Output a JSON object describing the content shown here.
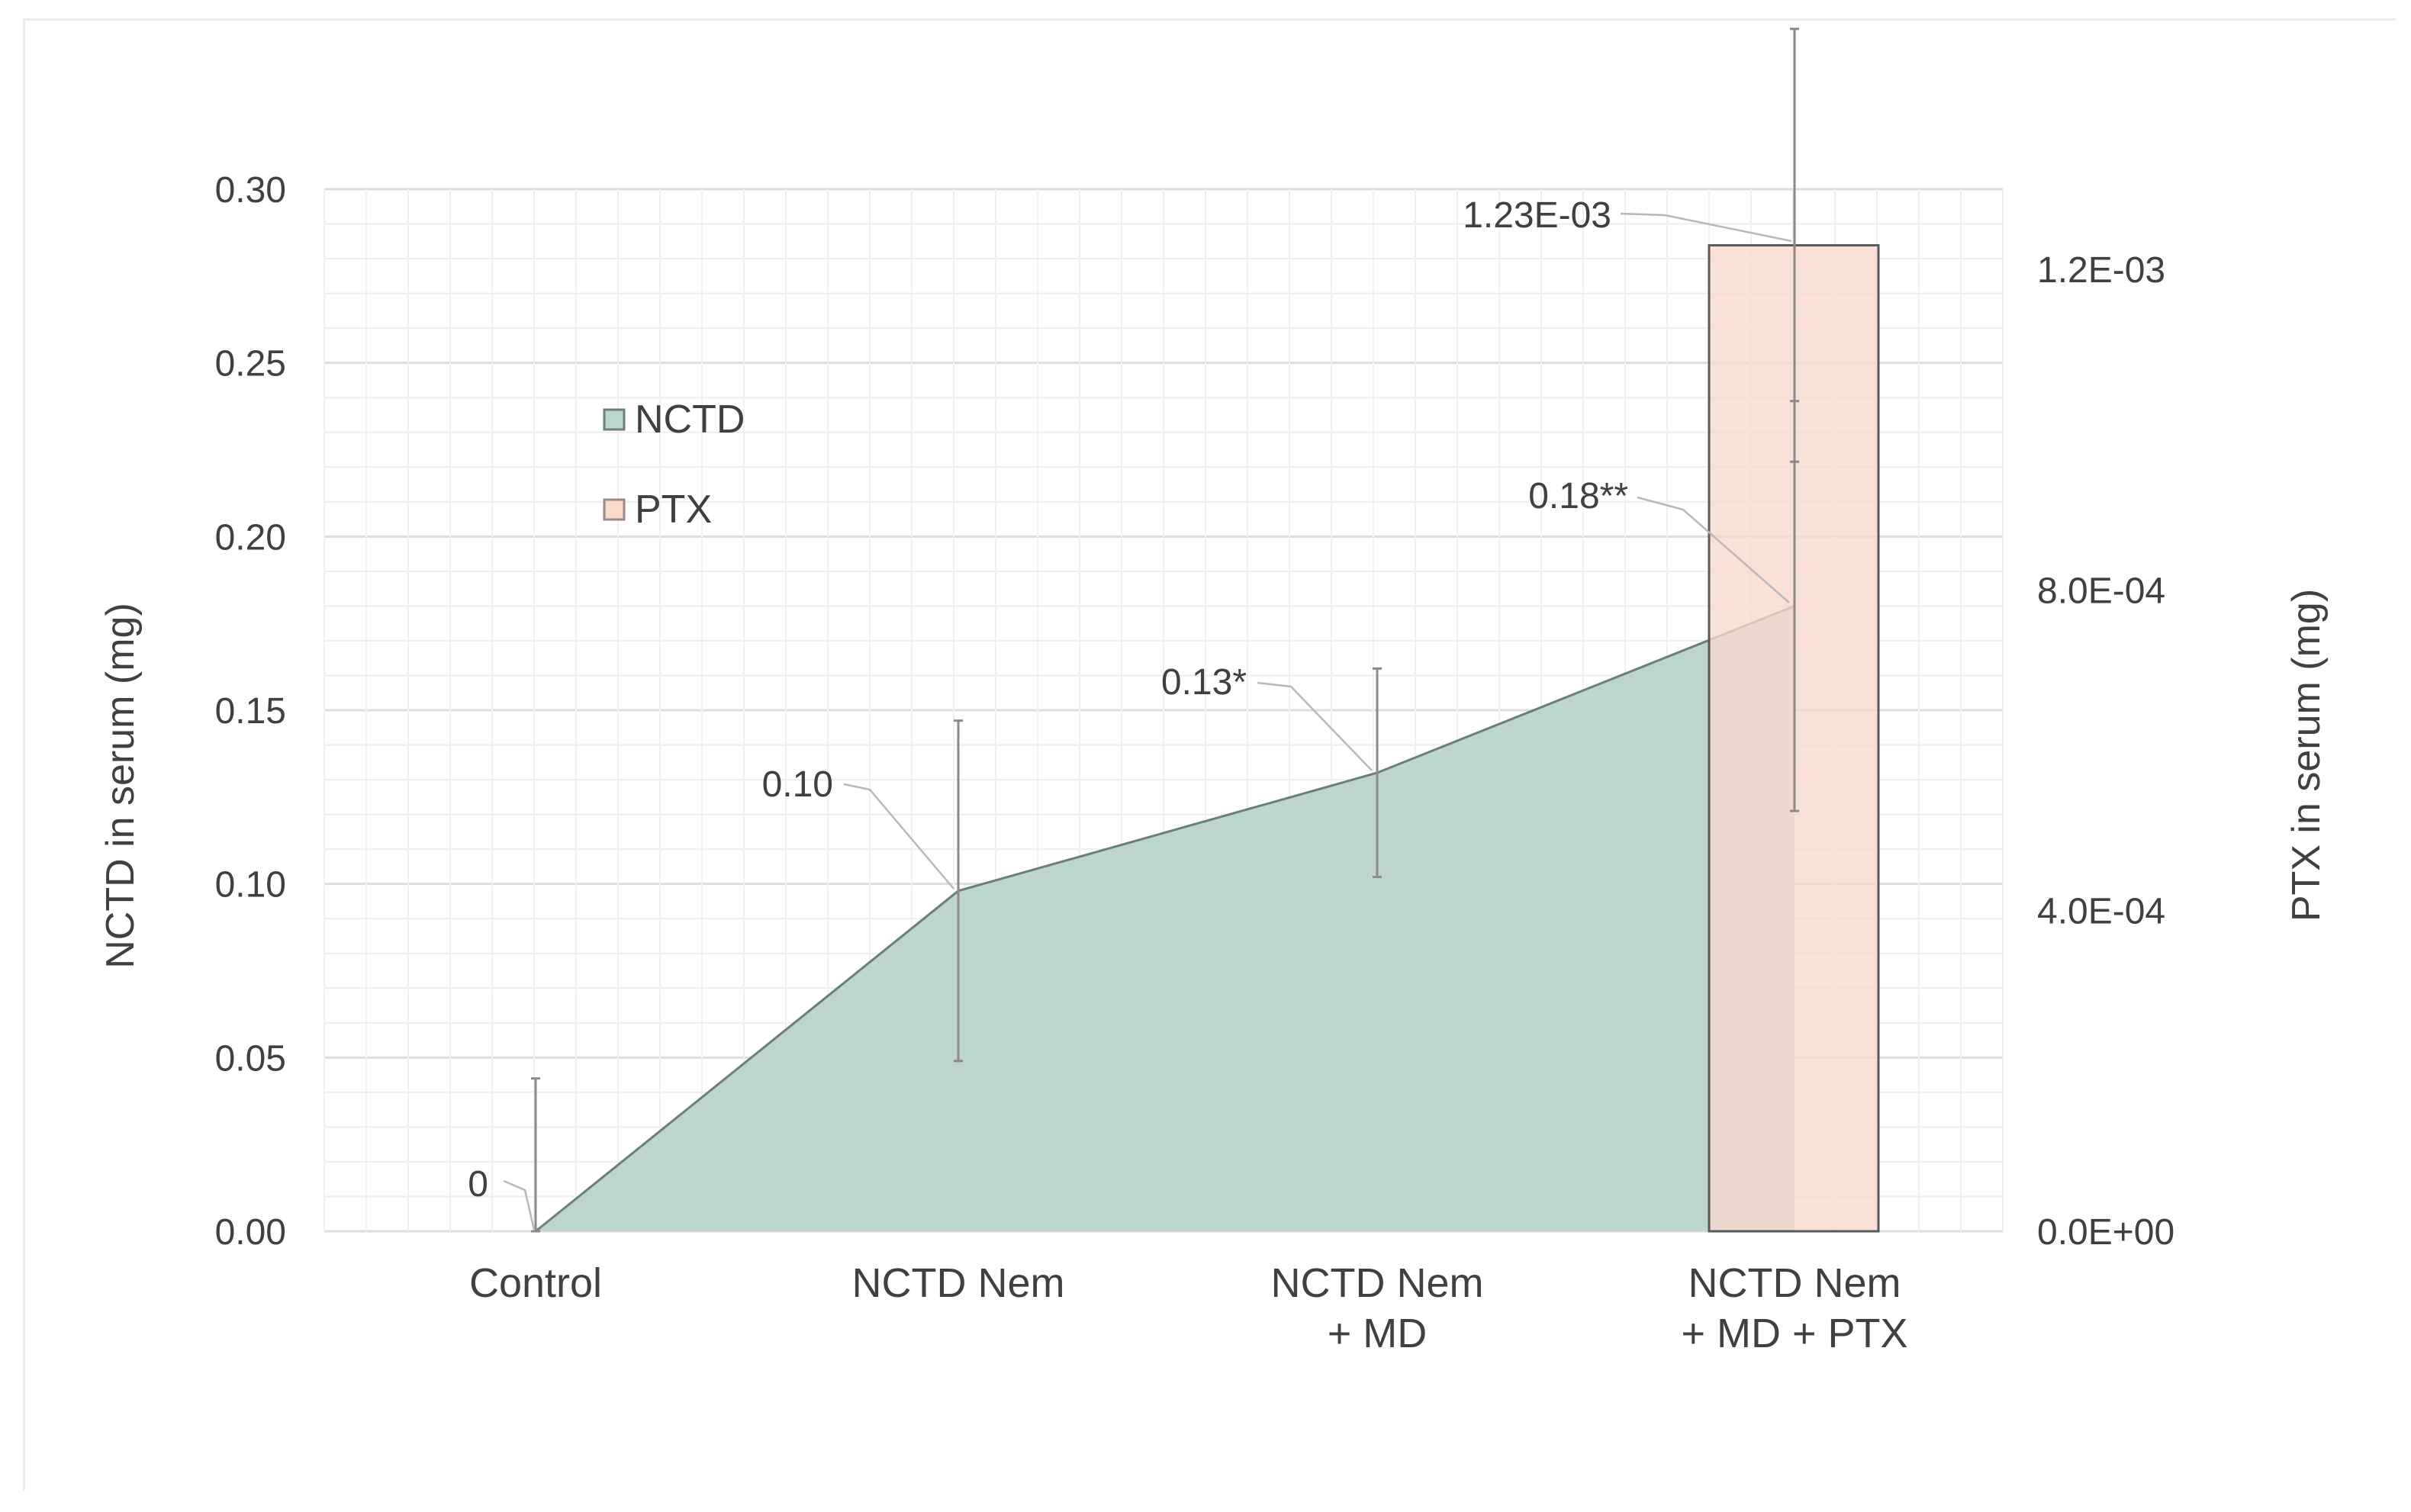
{
  "chart_data": {
    "type": "area",
    "categories": [
      "Control",
      "NCTD Nem",
      "NCTD Nem\n+ MD",
      "NCTD Nem\n+ MD + PTX"
    ],
    "ylabel": "NCTD in serum (mg)",
    "y2label": "PTX in serum (mg)",
    "ylim": [
      0,
      0.3
    ],
    "y2lim": [
      0,
      0.0013
    ],
    "y_ticks": [
      "0.00",
      "0.05",
      "0.10",
      "0.15",
      "0.20",
      "0.25",
      "0.30"
    ],
    "y2_ticks": [
      "0.0E+00",
      "4.0E-04",
      "8.0E-04",
      "1.2E-03"
    ],
    "grid": true,
    "legend_position": "upper-left",
    "series": [
      {
        "name": "NCTD",
        "type": "area",
        "axis": "left",
        "color": "#bdd5cf",
        "line_color": "#6b7f74",
        "values": [
          0,
          0.098,
          0.132,
          0.18
        ],
        "error": [
          0.044,
          0.049,
          0.03,
          0.059
        ],
        "labels": [
          "0",
          "0.10",
          "0.13*",
          "0.18**"
        ]
      },
      {
        "name": "PTX",
        "type": "bar",
        "axis": "right",
        "color": "#f8d9cb",
        "values": [
          null,
          null,
          null,
          0.00123
        ],
        "error": [
          null,
          null,
          null,
          0.00027
        ],
        "labels": [
          "",
          "",
          "",
          "1.23E-03"
        ]
      }
    ]
  }
}
